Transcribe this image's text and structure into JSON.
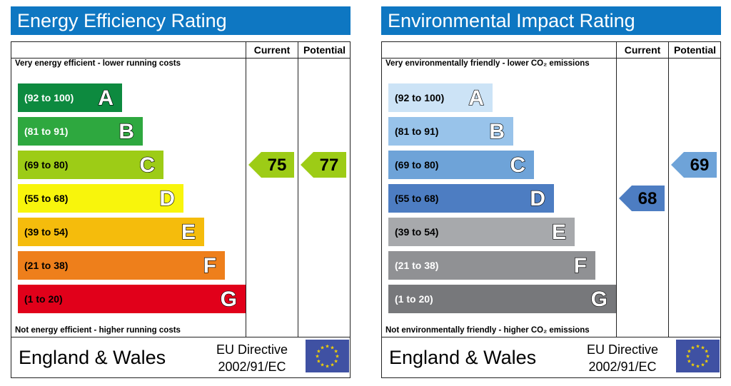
{
  "chart_data": [
    {
      "type": "bar",
      "title": "Energy Efficiency Rating",
      "columns": [
        "Current",
        "Potential"
      ],
      "top_note": "Very energy efficient - lower running costs",
      "bottom_note": "Not energy efficient - higher running costs",
      "bands": [
        {
          "letter": "A",
          "range": "(92 to 100)",
          "color": "#0d8a3f",
          "text_color": "#ffffff"
        },
        {
          "letter": "B",
          "range": "(81 to 91)",
          "color": "#2ea83f",
          "text_color": "#ffffff"
        },
        {
          "letter": "C",
          "range": "(69 to 80)",
          "color": "#9dcc16",
          "text_color": "#000000"
        },
        {
          "letter": "D",
          "range": "(55 to 68)",
          "color": "#f8f50c",
          "text_color": "#000000"
        },
        {
          "letter": "E",
          "range": "(39 to 54)",
          "color": "#f5bc0c",
          "text_color": "#000000"
        },
        {
          "letter": "F",
          "range": "(21 to 38)",
          "color": "#ee7f1b",
          "text_color": "#000000"
        },
        {
          "letter": "G",
          "range": "(1 to 20)",
          "color": "#e1001a",
          "text_color": "#000000"
        }
      ],
      "current": {
        "value": 75,
        "band": "C",
        "color": "#9dcc16"
      },
      "potential": {
        "value": 77,
        "band": "C",
        "color": "#9dcc16"
      },
      "footer_country": "England & Wales",
      "footer_directive": [
        "EU Directive",
        "2002/91/EC"
      ]
    },
    {
      "type": "bar",
      "title": "Environmental Impact Rating",
      "columns": [
        "Current",
        "Potential"
      ],
      "top_note": "Very environmentally friendly - lower CO₂ emissions",
      "bottom_note": "Not environmentally friendly - higher CO₂ emissions",
      "bands": [
        {
          "letter": "A",
          "range": "(92 to 100)",
          "color": "#cce3f6",
          "text_color": "#000000"
        },
        {
          "letter": "B",
          "range": "(81 to 91)",
          "color": "#98c3ea",
          "text_color": "#000000"
        },
        {
          "letter": "C",
          "range": "(69 to 80)",
          "color": "#6ea3d8",
          "text_color": "#000000"
        },
        {
          "letter": "D",
          "range": "(55 to 68)",
          "color": "#4d7dc2",
          "text_color": "#000000"
        },
        {
          "letter": "E",
          "range": "(39 to 54)",
          "color": "#a7a9ac",
          "text_color": "#000000"
        },
        {
          "letter": "F",
          "range": "(21 to 38)",
          "color": "#909194",
          "text_color": "#ffffff"
        },
        {
          "letter": "G",
          "range": "(1 to 20)",
          "color": "#77787b",
          "text_color": "#ffffff"
        }
      ],
      "current": {
        "value": 68,
        "band": "D",
        "color": "#4d7dc2"
      },
      "potential": {
        "value": 69,
        "band": "C",
        "color": "#6ea3d8"
      },
      "footer_country": "England & Wales",
      "footer_directive": [
        "EU Directive",
        "2002/91/EC"
      ]
    }
  ],
  "eu_flag": {
    "background": "#3f51a3",
    "stars": "#f5d400"
  }
}
